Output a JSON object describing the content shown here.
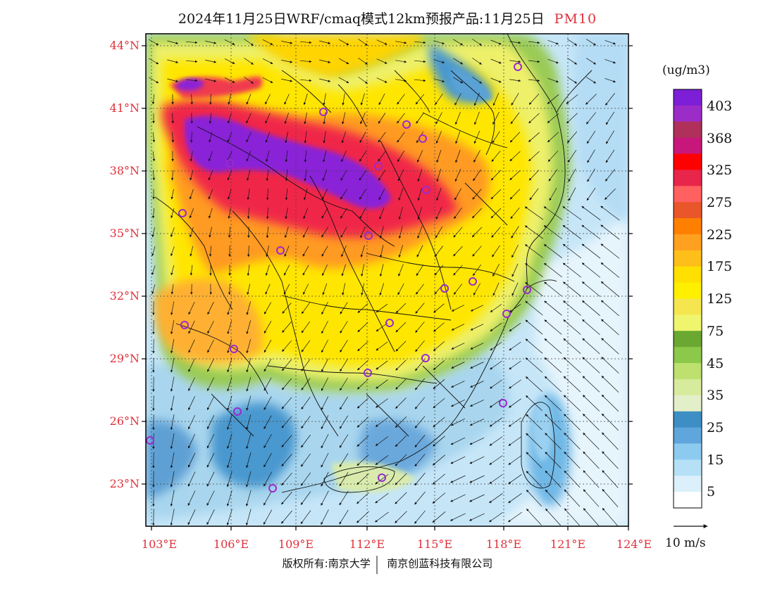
{
  "title": {
    "main": "2024年11月25日WRF/cmaq模式12km预报产品:11月25日",
    "pollutant": "PM10"
  },
  "axes": {
    "lat_labels": [
      "44°N",
      "41°N",
      "38°N",
      "35°N",
      "32°N",
      "29°N",
      "26°N",
      "23°N"
    ],
    "lon_labels": [
      "103°E",
      "106°E",
      "109°E",
      "112°E",
      "115°E",
      "118°E",
      "121°E",
      "124°E"
    ]
  },
  "colorbar": {
    "unit": "(ug/m3)",
    "labels": [
      "403",
      "368",
      "325",
      "275",
      "225",
      "175",
      "125",
      "75",
      "45",
      "35",
      "25",
      "15",
      "5"
    ],
    "colors": [
      "#7c1fd6",
      "#9b2cc8",
      "#b0305c",
      "#c8177a",
      "#ff0000",
      "#e8254a",
      "#ff6060",
      "#e8562a",
      "#ff8000",
      "#ffa020",
      "#ffbf1a",
      "#ffe000",
      "#fff000",
      "#f5e650",
      "#f0f56e",
      "#6aa832",
      "#8cc84a",
      "#bde06e",
      "#d7eb9c",
      "#e3efc8",
      "#3d8ec4",
      "#5fa6dc",
      "#8ccaf0",
      "#b6e0f6",
      "#dbf0fb",
      "#ffffff"
    ]
  },
  "wind_scale": {
    "label": "10 m/s"
  },
  "credit": {
    "left": "版权所有:南京大学",
    "right": "南京创蓝科技有限公司"
  },
  "colors": {
    "map_frame": "#000000",
    "axis_label": "#e0303a",
    "city_marker": "#9a2ad0"
  }
}
